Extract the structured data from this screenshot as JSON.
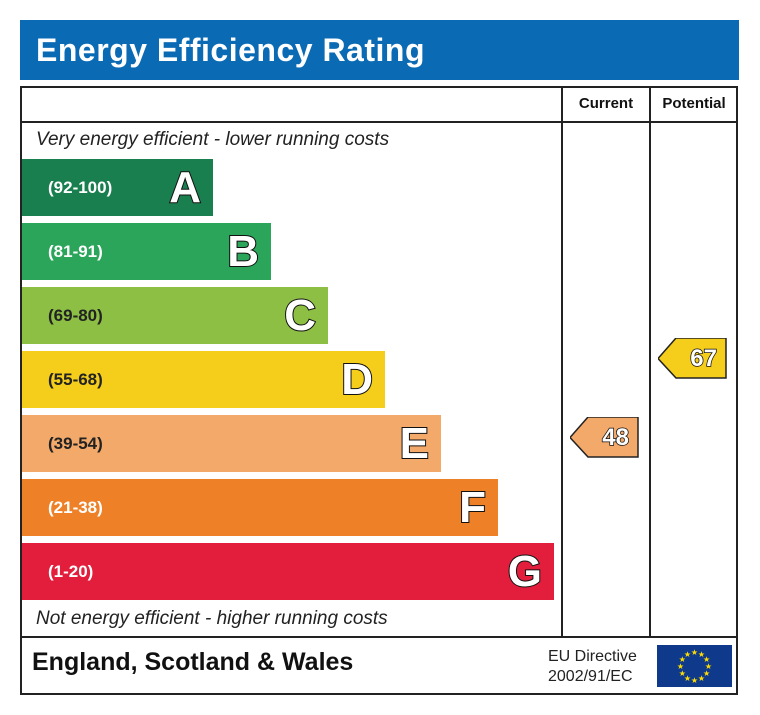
{
  "title": "Energy Efficiency Rating",
  "chart_data": {
    "type": "bar",
    "title": "Energy Efficiency Rating",
    "columns": [
      "Current",
      "Potential"
    ],
    "top_note": "Very energy efficient - lower running costs",
    "bottom_note": "Not energy efficient - higher running costs",
    "bands": [
      {
        "letter": "A",
        "range": "(92-100)",
        "color": "#1a7f4f"
      },
      {
        "letter": "B",
        "range": "(81-91)",
        "color": "#2aa55a"
      },
      {
        "letter": "C",
        "range": "(69-80)",
        "color": "#8cbf44"
      },
      {
        "letter": "D",
        "range": "(55-68)",
        "color": "#f5cd1b"
      },
      {
        "letter": "E",
        "range": "(39-54)",
        "color": "#f2a96a"
      },
      {
        "letter": "F",
        "range": "(21-38)",
        "color": "#ee8027"
      },
      {
        "letter": "G",
        "range": "(1-20)",
        "color": "#e21e3c"
      }
    ],
    "current": {
      "value": "48",
      "band": "E",
      "color": "#f2a96a"
    },
    "potential": {
      "value": "67",
      "band": "D",
      "color": "#f5cd1b"
    }
  },
  "footer": {
    "region": "England, Scotland & Wales",
    "directive_line1": "EU Directive",
    "directive_line2": "2002/91/EC",
    "flag": "eu-flag-icon"
  }
}
